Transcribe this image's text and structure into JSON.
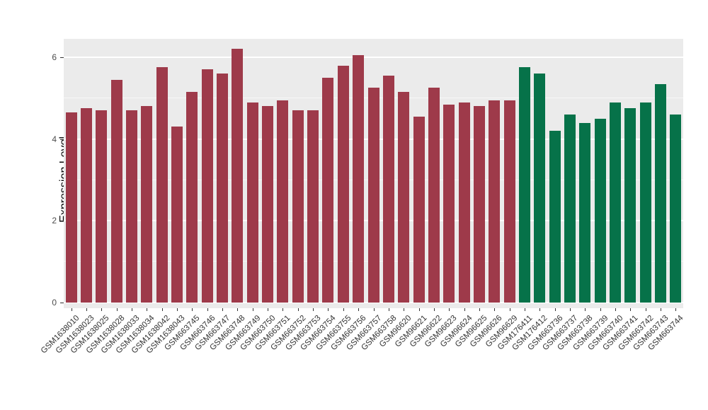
{
  "chart_data": {
    "type": "bar",
    "title": "",
    "xlabel": "",
    "ylabel": "Expression Level",
    "ylim": [
      0,
      6.45
    ],
    "yticks": [
      0,
      2,
      4,
      6
    ],
    "yticks_minor": [
      1,
      3,
      5
    ],
    "grid": true,
    "legend": "none",
    "panel_background": "#EBEBEB",
    "categories": [
      "GSM1638010",
      "GSM1638023",
      "GSM1638025",
      "GSM1638028",
      "GSM1638033",
      "GSM1638034",
      "GSM1638042",
      "GSM1638043",
      "GSM663745",
      "GSM663746",
      "GSM663747",
      "GSM663748",
      "GSM663749",
      "GSM663750",
      "GSM663751",
      "GSM663752",
      "GSM663753",
      "GSM663754",
      "GSM663755",
      "GSM663756",
      "GSM663757",
      "GSM663758",
      "GSM96620",
      "GSM96621",
      "GSM96622",
      "GSM96623",
      "GSM96624",
      "GSM96625",
      "GSM96626",
      "GSM96629",
      "GSM176411",
      "GSM176412",
      "GSM663736",
      "GSM663737",
      "GSM663738",
      "GSM663739",
      "GSM663740",
      "GSM663741",
      "GSM663742",
      "GSM663743",
      "GSM663744"
    ],
    "values": [
      4.65,
      4.75,
      4.7,
      5.45,
      4.7,
      4.8,
      5.75,
      4.3,
      5.15,
      5.7,
      5.6,
      6.2,
      4.9,
      4.8,
      4.95,
      4.7,
      4.7,
      5.5,
      5.8,
      6.05,
      5.25,
      5.55,
      5.15,
      4.55,
      5.25,
      4.85,
      4.9,
      4.8,
      4.95,
      4.95,
      5.75,
      5.6,
      4.2,
      4.6,
      4.4,
      4.5,
      4.9,
      4.75,
      4.9,
      5.35,
      4.6
    ],
    "groups": [
      "group1",
      "group1",
      "group1",
      "group1",
      "group1",
      "group1",
      "group1",
      "group1",
      "group1",
      "group1",
      "group1",
      "group1",
      "group1",
      "group1",
      "group1",
      "group1",
      "group1",
      "group1",
      "group1",
      "group1",
      "group1",
      "group1",
      "group1",
      "group1",
      "group1",
      "group1",
      "group1",
      "group1",
      "group1",
      "group1",
      "group2",
      "group2",
      "group2",
      "group2",
      "group2",
      "group2",
      "group2",
      "group2",
      "group2",
      "group2",
      "group2"
    ],
    "group_colors": {
      "group1": "#9e3a4a",
      "group2": "#067249"
    }
  }
}
